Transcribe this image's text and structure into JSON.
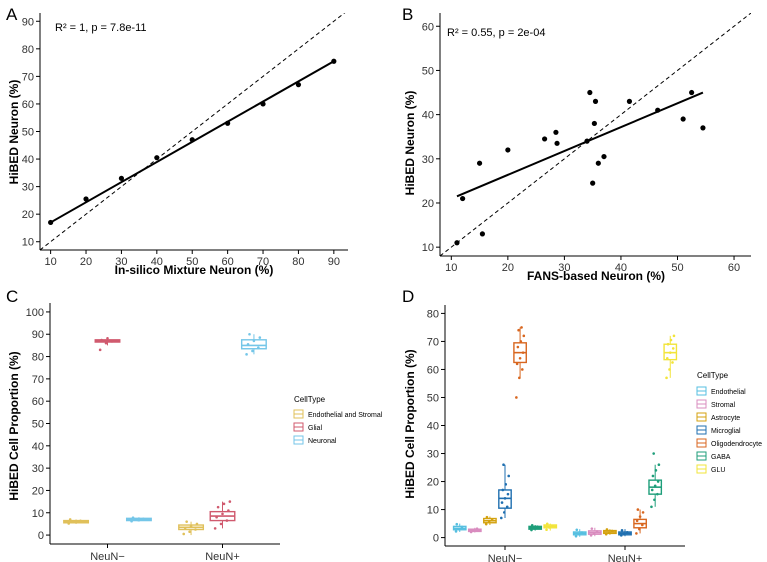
{
  "chart_data": [
    {
      "panel": "A",
      "type": "scatter",
      "annotation": "R² = 1, p = 7.8e-11",
      "xlabel": "In-silico Mixture Neuron (%)",
      "ylabel": "HiBED Neuron (%)",
      "xlim": [
        7,
        94
      ],
      "ylim": [
        7,
        93
      ],
      "xticks": [
        10,
        20,
        30,
        40,
        50,
        60,
        70,
        80,
        90
      ],
      "yticks": [
        10,
        20,
        30,
        40,
        50,
        60,
        70,
        80,
        90
      ],
      "x": [
        10,
        20,
        30,
        40,
        50,
        60,
        70,
        80,
        90
      ],
      "y": [
        17,
        25.5,
        33,
        40.5,
        47,
        53,
        60,
        67,
        75.5
      ],
      "fit_line": [
        [
          10,
          17
        ],
        [
          90,
          75.5
        ]
      ],
      "identity_line": true
    },
    {
      "panel": "B",
      "type": "scatter",
      "annotation": "R² = 0.55, p = 2e-04",
      "xlabel": "FANS-based Neuron (%)",
      "ylabel": "HiBED Neuron (%)",
      "xlim": [
        8,
        63
      ],
      "ylim": [
        8,
        63
      ],
      "xticks": [
        10,
        20,
        30,
        40,
        50,
        60
      ],
      "yticks": [
        10,
        20,
        30,
        40,
        50,
        60
      ],
      "x": [
        11,
        12,
        15,
        15.5,
        20,
        26.5,
        28.5,
        28.7,
        34,
        34.5,
        35,
        35.3,
        35.5,
        36,
        37,
        41.5,
        46.5,
        51,
        52.5,
        54.5
      ],
      "y": [
        11,
        21,
        29,
        13,
        32,
        34.5,
        36,
        33.5,
        34,
        45,
        24.5,
        38,
        43,
        29,
        30.5,
        43,
        41,
        39,
        45,
        37
      ],
      "fit_line": [
        [
          11,
          21.5
        ],
        [
          54.5,
          45
        ]
      ],
      "identity_line": true
    },
    {
      "panel": "C",
      "type": "box",
      "xlabel": "",
      "ylabel": "HiBED Cell Proportion (%)",
      "ylim": [
        -4,
        104
      ],
      "yticks": [
        0,
        10,
        20,
        30,
        40,
        50,
        60,
        70,
        80,
        90,
        100
      ],
      "categories": [
        "NeuN−",
        "NeuN+"
      ],
      "legend_title": "CellType",
      "series": [
        {
          "name": "Endothelial and Stromal",
          "color": "#e0c05a",
          "boxes": [
            {
              "q1": 5.5,
              "median": 6,
              "q3": 6.5,
              "min": 5,
              "max": 7,
              "points": [
                5.2,
                5.8,
                6.4,
                7
              ]
            },
            {
              "q1": 2.5,
              "median": 3.5,
              "q3": 4.5,
              "min": 0,
              "max": 6,
              "points": [
                0.5,
                1.5,
                2.5,
                3.2,
                4,
                5,
                6
              ]
            }
          ]
        },
        {
          "name": "Glial",
          "color": "#d05a6e",
          "boxes": [
            {
              "q1": 86.5,
              "median": 87,
              "q3": 87.5,
              "min": 85,
              "max": 88.5,
              "points": [
                83,
                86,
                86.8,
                87.4,
                88.2
              ]
            },
            {
              "q1": 6.5,
              "median": 8.5,
              "q3": 10.5,
              "min": 3,
              "max": 15,
              "points": [
                3,
                5,
                6.5,
                8,
                9.5,
                11,
                12.5,
                14,
                15
              ]
            }
          ]
        },
        {
          "name": "Neuronal",
          "color": "#74c6e8",
          "boxes": [
            {
              "q1": 6.5,
              "median": 7,
              "q3": 7.5,
              "min": 6,
              "max": 8,
              "points": [
                6.2,
                6.8,
                7.3,
                7.8
              ]
            },
            {
              "q1": 83.5,
              "median": 85,
              "q3": 87.5,
              "min": 81,
              "max": 90,
              "points": [
                81,
                82.5,
                84,
                85.5,
                87,
                88.5,
                90
              ]
            }
          ]
        }
      ]
    },
    {
      "panel": "D",
      "type": "box",
      "xlabel": "",
      "ylabel": "HiBED Cell Proportion (%)",
      "ylim": [
        -3,
        83
      ],
      "yticks": [
        0,
        10,
        20,
        30,
        40,
        50,
        60,
        70,
        80
      ],
      "categories": [
        "NeuN−",
        "NeuN+"
      ],
      "legend_title": "CellType",
      "series": [
        {
          "name": "Endothelial",
          "color": "#56bfe0",
          "boxes": [
            {
              "q1": 2.8,
              "median": 3.3,
              "q3": 4,
              "min": 2,
              "max": 5,
              "points": [
                2.2,
                3,
                3.8,
                4.8
              ]
            },
            {
              "q1": 1,
              "median": 1.5,
              "q3": 2,
              "min": 0.3,
              "max": 3,
              "points": [
                0.5,
                1.2,
                1.8,
                2.8
              ]
            }
          ]
        },
        {
          "name": "Stromal",
          "color": "#d98cbf",
          "boxes": [
            {
              "q1": 2.2,
              "median": 2.6,
              "q3": 3,
              "min": 1.8,
              "max": 3.5,
              "points": [
                2,
                2.5,
                3.2
              ]
            },
            {
              "q1": 1.2,
              "median": 1.8,
              "q3": 2.4,
              "min": 0.5,
              "max": 3.5,
              "points": [
                0.8,
                1.5,
                2.2,
                3.2
              ]
            }
          ]
        },
        {
          "name": "Astrocyte",
          "color": "#d4a20f",
          "boxes": [
            {
              "q1": 5.3,
              "median": 6,
              "q3": 6.8,
              "min": 4.5,
              "max": 7.5,
              "points": [
                4.8,
                5.8,
                6.5,
                7.3
              ]
            },
            {
              "q1": 1.5,
              "median": 2,
              "q3": 2.5,
              "min": 1,
              "max": 3,
              "points": [
                1.2,
                1.8,
                2.4,
                2.9
              ]
            }
          ]
        },
        {
          "name": "Microglial",
          "color": "#1f6fb0",
          "boxes": [
            {
              "q1": 10.5,
              "median": 14,
              "q3": 17,
              "min": 7,
              "max": 26,
              "points": [
                7,
                9,
                11,
                12.5,
                14,
                15.5,
                17,
                19,
                22,
                26
              ]
            },
            {
              "q1": 1,
              "median": 1.5,
              "q3": 2,
              "min": 0.5,
              "max": 3,
              "points": [
                0.8,
                1.3,
                1.9,
                2.6
              ]
            }
          ]
        },
        {
          "name": "Oligodendrocyte",
          "color": "#d8661f",
          "boxes": [
            {
              "q1": 62.5,
              "median": 66,
              "q3": 69.5,
              "min": 57,
              "max": 75,
              "points": [
                50,
                57,
                60,
                62,
                64,
                66,
                68,
                70,
                72,
                74,
                75
              ]
            },
            {
              "q1": 3.5,
              "median": 5,
              "q3": 6.5,
              "min": 1.5,
              "max": 10,
              "points": [
                1.5,
                3,
                4.5,
                6,
                7.5,
                9,
                10
              ]
            }
          ]
        },
        {
          "name": "GABA",
          "color": "#1e9e7a",
          "boxes": [
            {
              "q1": 3,
              "median": 3.5,
              "q3": 4,
              "min": 2.5,
              "max": 4.5,
              "points": [
                2.7,
                3.3,
                3.9,
                4.4
              ]
            },
            {
              "q1": 15.5,
              "median": 18,
              "q3": 20.5,
              "min": 11,
              "max": 26,
              "points": [
                11,
                13.5,
                15.5,
                17,
                18.5,
                20,
                22,
                24,
                26,
                30
              ]
            }
          ]
        },
        {
          "name": "GLU",
          "color": "#f2e43a",
          "boxes": [
            {
              "q1": 3.5,
              "median": 4,
              "q3": 4.5,
              "min": 2.5,
              "max": 5,
              "points": [
                2.8,
                3.6,
                4.2,
                4.9
              ]
            },
            {
              "q1": 63.5,
              "median": 66,
              "q3": 69,
              "min": 57,
              "max": 72,
              "points": [
                57,
                60,
                62.5,
                64,
                66,
                67.5,
                69,
                70.5,
                72
              ]
            }
          ]
        }
      ]
    }
  ]
}
